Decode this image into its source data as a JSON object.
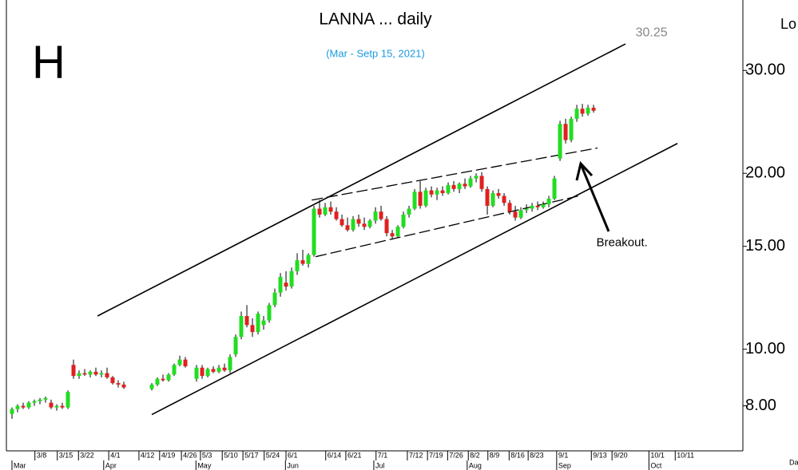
{
  "chart_data": {
    "type": "candlestick",
    "title": "LANNA ... daily",
    "subtitle": "(Mar - Setp 15, 2021)",
    "side_label": "H",
    "corner_top": "Lo",
    "corner_bottom": "Da",
    "up_color": "#22dd22",
    "down_color": "#e02020",
    "log_scale": true,
    "ylim": [
      6.7,
      39.6
    ],
    "yticks": [
      {
        "value": 30,
        "label": "30.00"
      },
      {
        "value": 20,
        "label": "20.00"
      },
      {
        "value": 15,
        "label": "15.00"
      },
      {
        "value": 10,
        "label": "10.00"
      },
      {
        "value": 8,
        "label": "8.00"
      }
    ],
    "xlim": [
      -1,
      130.7
    ],
    "xticks": [
      {
        "value": 4.1,
        "label": "3/8"
      },
      {
        "value": 8.1,
        "label": "3/15"
      },
      {
        "value": 11.9,
        "label": "3/22"
      },
      {
        "value": 17.3,
        "label": "4/1"
      },
      {
        "value": 22.7,
        "label": "4/12"
      },
      {
        "value": 26.4,
        "label": "4/19"
      },
      {
        "value": 30.3,
        "label": "4/26"
      },
      {
        "value": 33.7,
        "label": "5/3"
      },
      {
        "value": 37.6,
        "label": "5/10"
      },
      {
        "value": 41.3,
        "label": "5/17"
      },
      {
        "value": 45.1,
        "label": "5/24"
      },
      {
        "value": 49,
        "label": "6/1"
      },
      {
        "value": 56.1,
        "label": "6/14"
      },
      {
        "value": 59.7,
        "label": "6/21"
      },
      {
        "value": 65.1,
        "label": "7/1"
      },
      {
        "value": 70.7,
        "label": "7/12"
      },
      {
        "value": 74.3,
        "label": "7/19"
      },
      {
        "value": 77.9,
        "label": "7/26"
      },
      {
        "value": 81.6,
        "label": "8/2"
      },
      {
        "value": 85.1,
        "label": "8/9"
      },
      {
        "value": 88.9,
        "label": "8/16"
      },
      {
        "value": 92.3,
        "label": "8/23"
      },
      {
        "value": 97.4,
        "label": "9/1"
      },
      {
        "value": 103.6,
        "label": "9/13"
      },
      {
        "value": 107.3,
        "label": "9/20"
      },
      {
        "value": 113.9,
        "label": "10/1"
      },
      {
        "value": 118.6,
        "label": "10/11"
      }
    ],
    "months": [
      {
        "value": 0,
        "label": "Mar"
      },
      {
        "value": 16.4,
        "label": "Apr"
      },
      {
        "value": 32.9,
        "label": "May"
      },
      {
        "value": 48.9,
        "label": "Jun"
      },
      {
        "value": 64.7,
        "label": "Jul"
      },
      {
        "value": 81.4,
        "label": "Aug"
      },
      {
        "value": 97.4,
        "label": "Sep"
      },
      {
        "value": 113.9,
        "label": "Oct"
      }
    ],
    "candles": [
      [
        7.75,
        7.95,
        7.6,
        7.9
      ],
      [
        7.9,
        8.05,
        7.8,
        8.0
      ],
      [
        8.0,
        8.1,
        7.9,
        7.95
      ],
      [
        7.95,
        8.15,
        7.9,
        8.1
      ],
      [
        8.1,
        8.2,
        8.0,
        8.15
      ],
      [
        8.15,
        8.25,
        8.05,
        8.2
      ],
      [
        8.2,
        8.3,
        8.1,
        8.25
      ],
      [
        8.1,
        8.2,
        7.9,
        7.95
      ],
      [
        7.95,
        8.05,
        7.85,
        8.0
      ],
      [
        8.0,
        8.1,
        7.9,
        7.95
      ],
      [
        7.95,
        8.5,
        7.9,
        8.45
      ],
      [
        9.4,
        9.6,
        8.9,
        9.0
      ],
      [
        9.0,
        9.2,
        8.9,
        9.1
      ],
      [
        9.1,
        9.25,
        9.0,
        9.05
      ],
      [
        9.05,
        9.2,
        8.95,
        9.15
      ],
      [
        9.15,
        9.3,
        9.0,
        9.05
      ],
      [
        9.05,
        9.2,
        8.95,
        9.1
      ],
      [
        9.1,
        9.3,
        8.9,
        8.95
      ],
      [
        8.95,
        9.0,
        8.7,
        8.75
      ],
      [
        8.75,
        8.85,
        8.6,
        8.7
      ],
      [
        8.7,
        8.8,
        8.55,
        8.6
      ],
      null,
      null,
      null,
      null,
      [
        8.55,
        8.75,
        8.5,
        8.7
      ],
      [
        8.7,
        8.95,
        8.65,
        8.9
      ],
      [
        8.9,
        9.05,
        8.8,
        8.85
      ],
      [
        8.85,
        9.1,
        8.8,
        9.05
      ],
      [
        9.05,
        9.45,
        9.0,
        9.4
      ],
      [
        9.4,
        9.75,
        9.35,
        9.6
      ],
      [
        9.6,
        9.7,
        9.3,
        9.35
      ],
      null,
      [
        8.9,
        9.4,
        8.8,
        9.3
      ],
      [
        9.3,
        9.4,
        8.9,
        9.0
      ],
      [
        9.0,
        9.3,
        8.95,
        9.25
      ],
      [
        9.25,
        9.35,
        9.1,
        9.15
      ],
      [
        9.15,
        9.4,
        9.1,
        9.3
      ],
      [
        9.3,
        9.45,
        9.15,
        9.2
      ],
      [
        9.2,
        9.8,
        9.1,
        9.7
      ],
      [
        9.8,
        10.6,
        9.7,
        10.5
      ],
      [
        10.5,
        11.6,
        10.4,
        11.4
      ],
      [
        11.4,
        11.9,
        10.9,
        11.0
      ],
      [
        11.0,
        11.3,
        10.5,
        10.7
      ],
      [
        10.7,
        11.6,
        10.6,
        11.5
      ],
      [
        11.0,
        11.4,
        10.8,
        11.2
      ],
      [
        11.2,
        12.0,
        11.1,
        11.9
      ],
      [
        11.9,
        12.7,
        11.8,
        12.5
      ],
      [
        12.5,
        13.5,
        12.3,
        13.3
      ],
      [
        13.0,
        13.6,
        12.6,
        12.8
      ],
      [
        12.8,
        13.8,
        12.7,
        13.6
      ],
      [
        13.6,
        14.6,
        13.4,
        14.2
      ],
      [
        14.2,
        14.8,
        13.9,
        14.0
      ],
      [
        14.0,
        14.6,
        13.8,
        14.5
      ],
      [
        14.5,
        17.6,
        14.4,
        17.4
      ],
      [
        17.4,
        18.0,
        16.8,
        17.0
      ],
      [
        17.0,
        17.8,
        16.9,
        17.5
      ],
      [
        17.5,
        17.9,
        17.0,
        17.2
      ],
      [
        17.2,
        17.5,
        16.6,
        16.7
      ],
      [
        16.7,
        17.0,
        16.2,
        16.3
      ],
      [
        16.3,
        16.8,
        15.9,
        16.0
      ],
      [
        16.0,
        16.9,
        15.9,
        16.7
      ],
      [
        16.7,
        17.0,
        16.2,
        16.4
      ],
      [
        16.4,
        16.8,
        16.0,
        16.2
      ],
      [
        16.2,
        16.7,
        16.1,
        16.6
      ],
      [
        16.6,
        17.5,
        16.4,
        17.2
      ],
      [
        17.2,
        17.6,
        16.6,
        16.7
      ],
      [
        16.7,
        16.9,
        15.6,
        15.8
      ],
      [
        15.8,
        16.0,
        15.4,
        15.6
      ],
      [
        15.6,
        16.3,
        15.5,
        16.2
      ],
      [
        16.2,
        17.2,
        16.1,
        17.0
      ],
      [
        17.0,
        17.6,
        16.8,
        17.4
      ],
      [
        17.4,
        18.8,
        17.3,
        18.6
      ],
      [
        18.6,
        19.4,
        17.4,
        17.6
      ],
      [
        17.6,
        18.9,
        17.5,
        18.7
      ],
      [
        18.7,
        19.0,
        18.2,
        18.4
      ],
      [
        18.4,
        18.9,
        18.0,
        18.7
      ],
      [
        18.7,
        19.0,
        18.3,
        18.5
      ],
      [
        18.5,
        19.3,
        18.4,
        19.1
      ],
      [
        19.1,
        19.4,
        18.6,
        18.8
      ],
      [
        18.8,
        19.3,
        18.5,
        19.2
      ],
      [
        19.2,
        19.6,
        18.8,
        19.0
      ],
      [
        19.0,
        19.8,
        18.9,
        19.6
      ],
      [
        19.6,
        20.0,
        19.3,
        19.8
      ],
      [
        19.8,
        20.1,
        18.6,
        18.8
      ],
      [
        18.8,
        19.0,
        17.0,
        17.6
      ],
      [
        17.6,
        18.7,
        17.5,
        18.5
      ],
      [
        18.5,
        18.8,
        18.1,
        18.3
      ],
      [
        18.3,
        18.5,
        17.6,
        17.8
      ],
      [
        17.8,
        18.0,
        17.0,
        17.2
      ],
      [
        17.2,
        17.6,
        16.6,
        16.8
      ],
      [
        16.8,
        17.5,
        16.7,
        17.3
      ],
      [
        17.3,
        17.7,
        17.1,
        17.4
      ],
      [
        17.4,
        17.8,
        17.2,
        17.6
      ],
      [
        17.6,
        17.9,
        17.3,
        17.5
      ],
      [
        17.5,
        17.9,
        17.4,
        17.7
      ],
      [
        17.7,
        18.3,
        17.5,
        18.1
      ],
      [
        18.1,
        19.8,
        18.0,
        19.6
      ],
      [
        21.2,
        24.6,
        21.0,
        24.3
      ],
      [
        24.3,
        24.8,
        22.5,
        22.8
      ],
      [
        22.8,
        25.0,
        22.6,
        24.8
      ],
      [
        24.8,
        26.2,
        24.5,
        25.8
      ],
      [
        25.8,
        26.3,
        25.0,
        25.3
      ],
      [
        25.3,
        26.2,
        25.1,
        25.9
      ],
      [
        25.9,
        26.2,
        25.4,
        25.6
      ]
    ],
    "lines": [
      {
        "start": [
          15.3,
          11.4
        ],
        "end": [
          109.7,
          33.3
        ],
        "style": "solid"
      },
      {
        "start": [
          25,
          7.73
        ],
        "end": [
          119,
          22.5
        ],
        "style": "solid"
      },
      {
        "start": [
          53.6,
          18.0
        ],
        "end": [
          104.7,
          22.1
        ],
        "style": "dashed"
      },
      {
        "start": [
          54.3,
          14.4
        ],
        "end": [
          101.4,
          18.3
        ],
        "style": "dashed"
      }
    ],
    "annotations": [
      {
        "text": "30.25",
        "at": [
          111.5,
          34.8
        ],
        "color": "#888888"
      },
      {
        "text": "Breakout.",
        "at": [
          104.5,
          15.2
        ],
        "color": "#000000"
      }
    ]
  }
}
